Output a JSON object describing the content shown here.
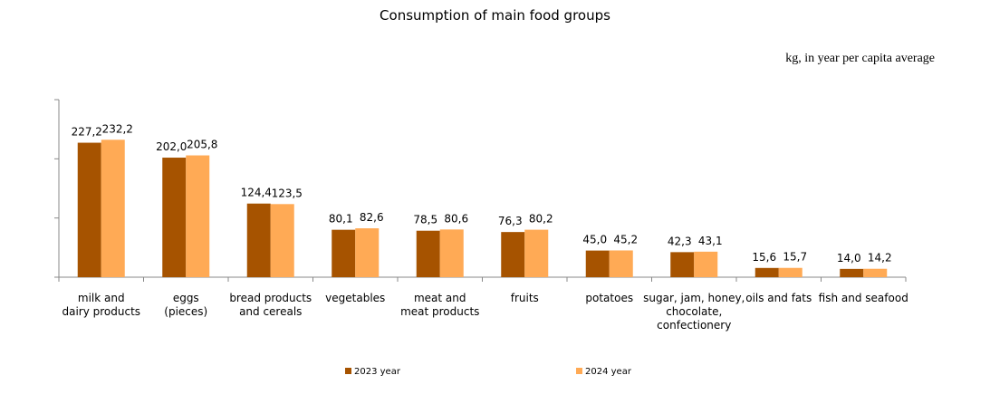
{
  "chart_data": {
    "type": "bar",
    "title": "Consumption of main food groups",
    "unit_label": "kg, in year per capita average",
    "categories": [
      [
        "milk and",
        "dairy products"
      ],
      [
        "eggs",
        "(pieces)"
      ],
      [
        "bread products",
        "and cereals"
      ],
      [
        "vegetables"
      ],
      [
        "meat and",
        "meat products"
      ],
      [
        "fruits"
      ],
      [
        "potatoes"
      ],
      [
        "sugar, jam, honey,",
        "chocolate,",
        "confectionery"
      ],
      [
        "oils and fats"
      ],
      [
        "fish and seafood"
      ]
    ],
    "series": [
      {
        "name": "2023  year",
        "color": "#A65300",
        "values": [
          227.2,
          202.0,
          124.4,
          80.1,
          78.5,
          76.3,
          45.0,
          42.3,
          15.6,
          14.0
        ],
        "labels": [
          "227,2",
          "202,0",
          "124,4",
          "80,1",
          "78,5",
          "76,3",
          "45,0",
          "42,3",
          "15,6",
          "14,0"
        ]
      },
      {
        "name": "2024 year",
        "color": "#FFAA55",
        "values": [
          232.2,
          205.8,
          123.5,
          82.6,
          80.6,
          80.2,
          45.2,
          43.1,
          15.7,
          14.2
        ],
        "labels": [
          "232,2",
          "205,8",
          "123,5",
          "82,6",
          "80,6",
          "80,2",
          "45,2",
          "43,1",
          "15,7",
          "14,2"
        ]
      }
    ],
    "ylim": [
      0,
      300
    ],
    "legend_position": "bottom",
    "grid": false
  }
}
